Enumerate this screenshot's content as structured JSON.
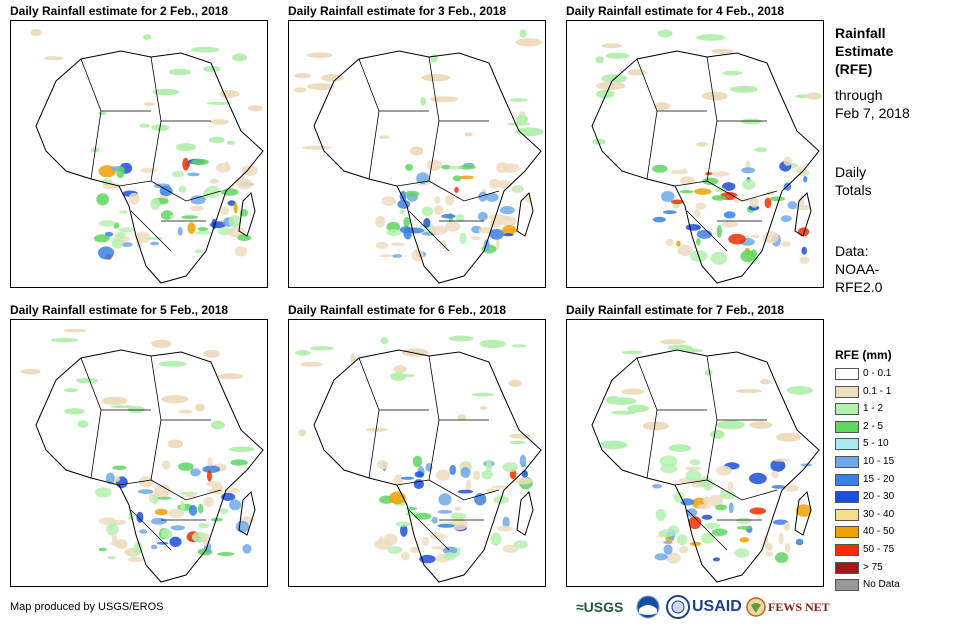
{
  "maps": [
    {
      "title": "Daily Rainfall estimate for 2 Feb., 2018"
    },
    {
      "title": "Daily Rainfall estimate for 3 Feb., 2018"
    },
    {
      "title": "Daily Rainfall estimate for 4 Feb., 2018"
    },
    {
      "title": "Daily Rainfall estimate for 5 Feb., 2018"
    },
    {
      "title": "Daily Rainfall estimate for 6 Feb., 2018"
    },
    {
      "title": "Daily Rainfall estimate for 7 Feb., 2018"
    }
  ],
  "side": {
    "title_line1": "Rainfall",
    "title_line2": "Estimate",
    "title_line3": "(RFE)",
    "through_line1": "through",
    "through_line2": "Feb 7, 2018",
    "totals_line1": "Daily",
    "totals_line2": "Totals",
    "data_line1": "Data:",
    "data_line2": "NOAA-",
    "data_line3": "RFE2.0"
  },
  "legend": {
    "title": "RFE (mm)",
    "items": [
      {
        "label": "0 - 0.1",
        "color": "#ffffff"
      },
      {
        "label": "0.1 - 1",
        "color": "#eedcbf"
      },
      {
        "label": "1 - 2",
        "color": "#b5f0b0"
      },
      {
        "label": "2 - 5",
        "color": "#5fd65f"
      },
      {
        "label": "5 - 10",
        "color": "#a8ecf0"
      },
      {
        "label": "10 - 15",
        "color": "#6ea8e8"
      },
      {
        "label": "15 - 20",
        "color": "#3a80e6"
      },
      {
        "label": "20 - 30",
        "color": "#1c50d8"
      },
      {
        "label": "30 - 40",
        "color": "#f5e08a"
      },
      {
        "label": "40 - 50",
        "color": "#f0a000"
      },
      {
        "label": "50 - 75",
        "color": "#f03000"
      },
      {
        "label": "> 75",
        "color": "#a01818"
      },
      {
        "label": "No Data",
        "color": "#999999"
      }
    ]
  },
  "credit": "Map produced by USGS/EROS",
  "logos": {
    "usgs": "≈USGS",
    "usaid": "USAID",
    "fewsnet": "FEWS NET"
  }
}
